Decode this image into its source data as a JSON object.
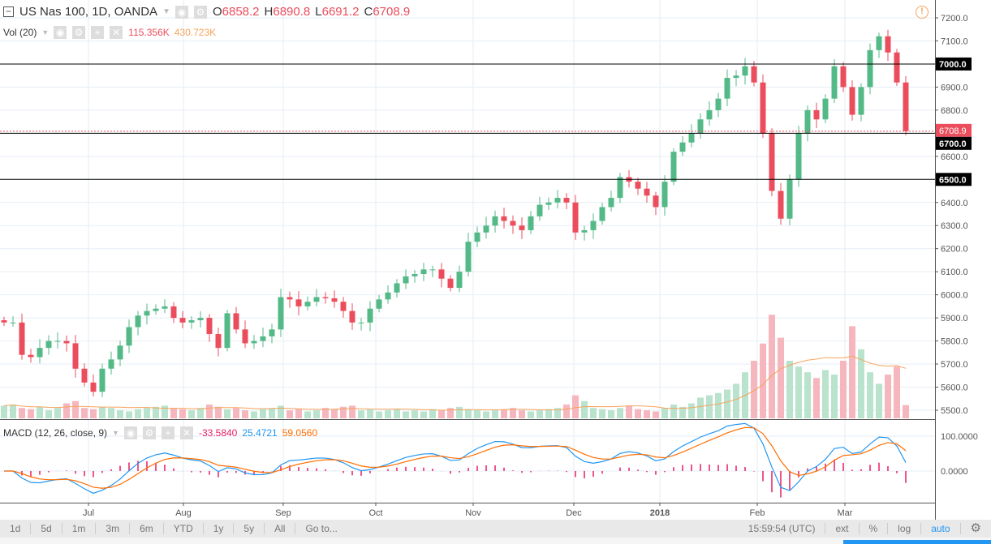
{
  "header": {
    "symbol": "US Nas 100, 1D, OANDA",
    "o_label": "O",
    "o": "6858.2",
    "h_label": "H",
    "h": "6890.8",
    "l_label": "L",
    "l": "6691.2",
    "c_label": "C",
    "c": "6708.9"
  },
  "volume_legend": {
    "label": "Vol (20)",
    "value": "115.356K",
    "ma": "430.723K"
  },
  "macd_legend": {
    "label": "MACD (12, 26, close, 9)",
    "hist": "-33.5840",
    "macd": "25.4721",
    "signal": "59.0560"
  },
  "colors": {
    "up": "#53b987",
    "down": "#eb4d5c",
    "macd": "#2196f3",
    "signal": "#ff6d00",
    "hist": "#e91e63",
    "grid": "#e6eef5"
  },
  "price_axis": {
    "ticks": [
      "7200.0",
      "7100.0",
      "6900.0",
      "6800.0",
      "6600.0",
      "6400.0",
      "6300.0",
      "6200.0",
      "6100.0",
      "6000.0",
      "5900.0",
      "5800.0",
      "5700.0",
      "5600.0",
      "5500.0"
    ],
    "lines": [
      "7000.0",
      "6700.0",
      "6500.0"
    ],
    "last": "6708.9"
  },
  "macd_axis": {
    "ticks": [
      "100.0000",
      "0.0000"
    ]
  },
  "date_axis": [
    "Jul",
    "Aug",
    "Sep",
    "Oct",
    "Nov",
    "Dec",
    "2018",
    "Feb",
    "Mar"
  ],
  "toolbar": {
    "ranges": [
      "1d",
      "5d",
      "1m",
      "3m",
      "6m",
      "YTD",
      "1y",
      "5y",
      "All",
      "Go to..."
    ],
    "time": "15:59:54 (UTC)",
    "ext": "ext",
    "pct": "%",
    "log": "log",
    "auto": "auto"
  },
  "chart_data": {
    "type": "candlestick",
    "closes": [
      5880,
      5880,
      5740,
      5730,
      5770,
      5800,
      5800,
      5790,
      5680,
      5620,
      5580,
      5680,
      5720,
      5780,
      5860,
      5910,
      5930,
      5940,
      5950,
      5900,
      5880,
      5890,
      5900,
      5830,
      5770,
      5920,
      5850,
      5790,
      5800,
      5820,
      5850,
      5990,
      5980,
      5950,
      5970,
      5990,
      5985,
      5970,
      5930,
      5880,
      5880,
      5940,
      5980,
      6010,
      6050,
      6080,
      6090,
      6110,
      6110,
      6070,
      6030,
      6100,
      6230,
      6270,
      6300,
      6340,
      6320,
      6300,
      6280,
      6340,
      6390,
      6400,
      6420,
      6400,
      6270,
      6280,
      6320,
      6380,
      6420,
      6510,
      6490,
      6460,
      6430,
      6380,
      6490,
      6620,
      6660,
      6700,
      6760,
      6800,
      6850,
      6940,
      6950,
      6990,
      6920,
      6700,
      6450,
      6330,
      6500,
      6700,
      6800,
      6760,
      6850,
      6990,
      6900,
      6780,
      6900,
      7060,
      7120,
      7050,
      6920,
      6709
    ],
    "volume_k": [
      110,
      120,
      90,
      80,
      100,
      70,
      90,
      130,
      150,
      90,
      80,
      100,
      90,
      70,
      60,
      80,
      90,
      100,
      110,
      90,
      80,
      70,
      90,
      120,
      100,
      80,
      90,
      70,
      60,
      80,
      90,
      110,
      70,
      80,
      60,
      70,
      90,
      80,
      100,
      110,
      70,
      80,
      60,
      70,
      80,
      60,
      70,
      60,
      80,
      70,
      90,
      100,
      80,
      70,
      60,
      70,
      80,
      90,
      70,
      60,
      70,
      80,
      90,
      120,
      200,
      150,
      90,
      80,
      70,
      90,
      110,
      80,
      70,
      60,
      90,
      120,
      100,
      130,
      180,
      200,
      220,
      250,
      300,
      400,
      500,
      650,
      900,
      700,
      500,
      450,
      400,
      350,
      420,
      380,
      500,
      800,
      600,
      400,
      300,
      380,
      450,
      115
    ],
    "ylim": [
      5450,
      7250
    ]
  }
}
